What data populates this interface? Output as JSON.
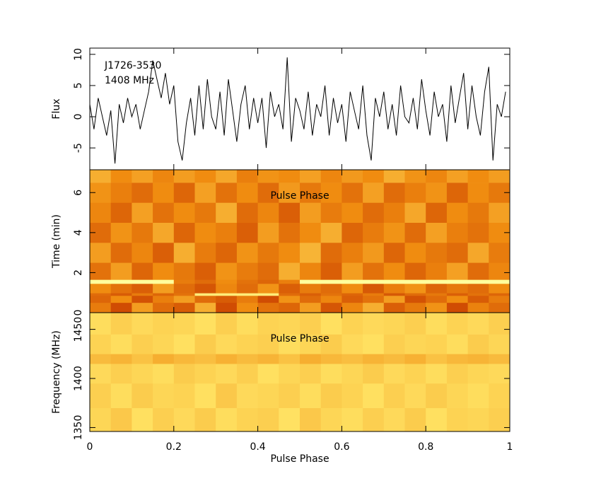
{
  "chart_data": [
    {
      "type": "line",
      "ylabel": "Flux",
      "annotations": [
        "J1726-3530",
        "1408 MHz"
      ],
      "color": "#000000",
      "xlim": [
        0,
        1
      ],
      "xticks": [
        0,
        0.2,
        0.4,
        0.6,
        0.8,
        1
      ],
      "ylim": [
        -8.5,
        11
      ],
      "yticks": [
        -5,
        0,
        5,
        10
      ],
      "x": [
        0,
        0.01,
        0.02,
        0.03,
        0.04,
        0.05,
        0.06,
        0.07,
        0.08,
        0.09,
        0.1,
        0.11,
        0.12,
        0.13,
        0.14,
        0.15,
        0.16,
        0.17,
        0.18,
        0.19,
        0.2,
        0.21,
        0.22,
        0.23,
        0.24,
        0.25,
        0.26,
        0.27,
        0.28,
        0.29,
        0.3,
        0.31,
        0.32,
        0.33,
        0.34,
        0.35,
        0.36,
        0.37,
        0.38,
        0.39,
        0.4,
        0.41,
        0.42,
        0.43,
        0.44,
        0.45,
        0.46,
        0.47,
        0.48,
        0.49,
        0.5,
        0.51,
        0.52,
        0.53,
        0.54,
        0.55,
        0.56,
        0.57,
        0.58,
        0.59,
        0.6,
        0.61,
        0.62,
        0.63,
        0.64,
        0.65,
        0.66,
        0.67,
        0.68,
        0.69,
        0.7,
        0.71,
        0.72,
        0.73,
        0.74,
        0.75,
        0.76,
        0.77,
        0.78,
        0.79,
        0.8,
        0.81,
        0.82,
        0.83,
        0.84,
        0.85,
        0.86,
        0.87,
        0.88,
        0.89,
        0.9,
        0.91,
        0.92,
        0.93,
        0.94,
        0.95,
        0.96,
        0.97,
        0.98,
        0.99
      ],
      "values": [
        2,
        -2,
        3,
        0,
        -3,
        1,
        -7.5,
        2,
        -1,
        3,
        0,
        2,
        -2,
        1,
        4,
        9,
        6,
        3,
        7,
        2,
        5,
        -4,
        -7,
        -1,
        3,
        -3,
        5,
        -2,
        6,
        0,
        -2,
        4,
        -3,
        6,
        1,
        -4,
        2,
        5,
        -2,
        3,
        -1,
        3,
        -5,
        4,
        0,
        2,
        -2,
        9.5,
        -4,
        3,
        1,
        -2,
        4,
        -3,
        2,
        0,
        5,
        -3,
        3,
        -1,
        2,
        -4,
        4,
        1,
        -2,
        5,
        -3,
        -7,
        3,
        0,
        4,
        -2,
        2,
        -3,
        5,
        0,
        -1,
        3,
        -2,
        6,
        1,
        -3,
        4,
        0,
        2,
        -4,
        5,
        -1,
        3,
        7,
        -2,
        5,
        0,
        -3,
        4,
        8,
        -7,
        2,
        0,
        4
      ]
    },
    {
      "type": "heatmap",
      "title": "Pulse Phase",
      "ylabel": "Time (min)",
      "colormap": [
        "#7a0c00",
        "#c83c00",
        "#f08c10",
        "#ffe060",
        "#ffff9c"
      ],
      "xlim": [
        0,
        1
      ],
      "xticks": [
        0,
        0.2,
        0.4,
        0.6,
        0.8,
        1
      ],
      "ylim": [
        0,
        7.14
      ],
      "yticks": [
        0,
        2,
        4,
        6
      ],
      "y_edges": [
        0,
        0.5,
        0.85,
        0.98,
        1.45,
        1.65,
        2.5,
        3.5,
        4.5,
        5.5,
        6.5,
        7.14
      ],
      "z": [
        [
          0.45,
          0.3,
          0.55,
          0.4,
          0.35,
          0.6,
          0.3,
          0.5,
          0.42,
          0.38,
          0.55,
          0.33,
          0.48,
          0.6,
          0.36,
          0.44,
          0.52,
          0.3,
          0.47,
          0.4
        ],
        [
          0.38,
          0.5,
          0.32,
          0.46,
          0.55,
          0.4,
          0.35,
          0.45,
          0.3,
          0.52,
          0.4,
          0.48,
          0.36,
          0.42,
          0.55,
          0.32,
          0.4,
          0.5,
          0.35,
          0.45
        ],
        [
          0.4,
          0.35,
          0.45,
          0.38,
          0.42,
          0.85,
          0.85,
          0.85,
          0.85,
          0.4,
          0.36,
          0.42,
          0.38,
          0.45,
          0.34,
          0.4,
          0.44,
          0.36,
          0.42,
          0.38
        ],
        [
          0.5,
          0.42,
          0.36,
          0.55,
          0.4,
          0.33,
          0.48,
          0.4,
          0.52,
          0.36,
          0.45,
          0.4,
          0.5,
          0.34,
          0.46,
          0.52,
          0.38,
          0.44,
          0.4,
          0.5
        ],
        [
          1,
          1,
          1,
          1,
          0.45,
          0.4,
          0.5,
          0.42,
          0.38,
          0.46,
          1,
          1,
          1,
          1,
          1,
          1,
          1,
          1,
          1,
          1
        ],
        [
          0.42,
          0.55,
          0.38,
          0.5,
          0.44,
          0.36,
          0.52,
          0.45,
          0.4,
          0.6,
          0.48,
          0.36,
          0.55,
          0.42,
          0.5,
          0.38,
          0.46,
          0.56,
          0.4,
          0.48
        ],
        [
          0.55,
          0.4,
          0.48,
          0.36,
          0.6,
          0.45,
          0.38,
          0.52,
          0.44,
          0.5,
          0.62,
          0.4,
          0.46,
          0.54,
          0.38,
          0.5,
          0.44,
          0.4,
          0.58,
          0.45
        ],
        [
          0.4,
          0.52,
          0.44,
          0.58,
          0.38,
          0.5,
          0.46,
          0.36,
          0.55,
          0.42,
          0.5,
          0.6,
          0.38,
          0.45,
          0.52,
          0.4,
          0.56,
          0.46,
          0.42,
          0.5
        ],
        [
          0.48,
          0.38,
          0.56,
          0.42,
          0.5,
          0.44,
          0.6,
          0.4,
          0.48,
          0.36,
          0.55,
          0.45,
          0.5,
          0.4,
          0.46,
          0.58,
          0.38,
          0.5,
          0.44,
          0.56
        ],
        [
          0.52,
          0.46,
          0.4,
          0.5,
          0.38,
          0.56,
          0.42,
          0.5,
          0.4,
          0.54,
          0.44,
          0.5,
          0.42,
          0.56,
          0.4,
          0.46,
          0.52,
          0.38,
          0.5,
          0.44
        ],
        [
          0.6,
          0.5,
          0.56,
          0.48,
          0.55,
          0.5,
          0.58,
          0.46,
          0.52,
          0.5,
          0.56,
          0.48,
          0.54,
          0.5,
          0.6,
          0.52,
          0.48,
          0.56,
          0.5,
          0.55
        ]
      ]
    },
    {
      "type": "heatmap",
      "title": "Pulse Phase",
      "xlabel": "Pulse Phase",
      "ylabel": "Frequency (MHz)",
      "colormap": [
        "#7a0c00",
        "#c83c00",
        "#f08c10",
        "#ffe060",
        "#ffff9c"
      ],
      "xlim": [
        0,
        1
      ],
      "xticks": [
        0,
        0.2,
        0.4,
        0.6,
        0.8,
        1
      ],
      "ylim": [
        1346,
        1467
      ],
      "yticks": [
        1350,
        1400,
        1450
      ],
      "y_edges": [
        1346,
        1370,
        1395,
        1415,
        1425,
        1445,
        1467
      ],
      "z": [
        [
          0.72,
          0.68,
          0.75,
          0.7,
          0.73,
          0.69,
          0.74,
          0.71,
          0.7,
          0.76,
          0.68,
          0.72,
          0.74,
          0.7,
          0.73,
          0.69,
          0.75,
          0.71,
          0.72,
          0.7
        ],
        [
          0.7,
          0.74,
          0.69,
          0.72,
          0.71,
          0.75,
          0.68,
          0.73,
          0.72,
          0.7,
          0.74,
          0.69,
          0.71,
          0.75,
          0.7,
          0.73,
          0.69,
          0.72,
          0.74,
          0.71
        ],
        [
          0.73,
          0.7,
          0.72,
          0.74,
          0.69,
          0.71,
          0.73,
          0.7,
          0.75,
          0.72,
          0.7,
          0.74,
          0.72,
          0.69,
          0.73,
          0.71,
          0.74,
          0.7,
          0.72,
          0.73
        ],
        [
          0.64,
          0.62,
          0.66,
          0.6,
          0.63,
          0.65,
          0.61,
          0.64,
          0.62,
          0.66,
          0.6,
          0.63,
          0.65,
          0.62,
          0.64,
          0.61,
          0.66,
          0.63,
          0.62,
          0.64
        ],
        [
          0.71,
          0.74,
          0.7,
          0.72,
          0.75,
          0.69,
          0.73,
          0.71,
          0.7,
          0.74,
          0.72,
          0.69,
          0.73,
          0.75,
          0.7,
          0.72,
          0.71,
          0.74,
          0.69,
          0.72
        ],
        [
          0.74,
          0.7,
          0.73,
          0.71,
          0.72,
          0.75,
          0.7,
          0.74,
          0.71,
          0.72,
          0.7,
          0.75,
          0.71,
          0.73,
          0.72,
          0.7,
          0.74,
          0.71,
          0.73,
          0.7
        ]
      ]
    }
  ]
}
